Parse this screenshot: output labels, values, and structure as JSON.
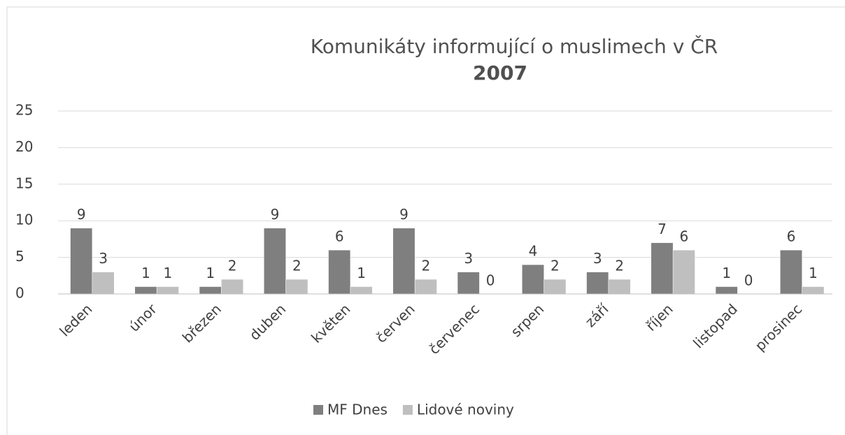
{
  "chart_data": {
    "type": "bar",
    "title": "Komunikáty informující o muslimech v ČR",
    "subtitle": "2007",
    "categories": [
      "leden",
      "únor",
      "březen",
      "duben",
      "květen",
      "červen",
      "červenec",
      "srpen",
      "září",
      "říjen",
      "listopad",
      "prosinec"
    ],
    "series": [
      {
        "name": "MF Dnes",
        "color": "#7f7f7f",
        "values": [
          9,
          1,
          1,
          9,
          6,
          9,
          3,
          4,
          3,
          7,
          1,
          6
        ]
      },
      {
        "name": "Lidové noviny",
        "color": "#bfbfbf",
        "values": [
          3,
          1,
          2,
          2,
          1,
          2,
          0,
          2,
          2,
          6,
          0,
          1
        ]
      }
    ],
    "ylim": [
      0,
      25
    ],
    "yticks": [
      0,
      5,
      10,
      15,
      20,
      25
    ],
    "grid": true,
    "legend": "bottom"
  }
}
